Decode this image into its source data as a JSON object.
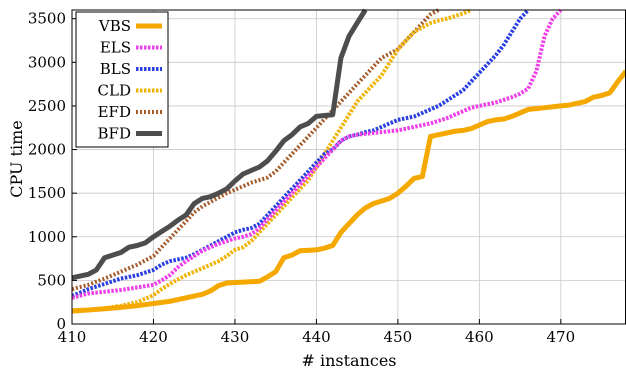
{
  "chart_data": {
    "type": "line",
    "title": "",
    "xlabel": "# instances",
    "ylabel": "CPU time",
    "xlim": [
      410,
      478
    ],
    "ylim": [
      0,
      3600
    ],
    "xticks": [
      410,
      420,
      430,
      440,
      450,
      460,
      470
    ],
    "yticks": [
      0,
      500,
      1000,
      1500,
      2000,
      2500,
      3000,
      3500
    ],
    "grid": true,
    "legend_position": "top-left",
    "series": [
      {
        "name": "VBS",
        "color": "#f5a800",
        "marker": "line",
        "points": [
          [
            410,
            150
          ],
          [
            412,
            160
          ],
          [
            414,
            175
          ],
          [
            416,
            190
          ],
          [
            418,
            210
          ],
          [
            420,
            235
          ],
          [
            422,
            260
          ],
          [
            424,
            300
          ],
          [
            426,
            340
          ],
          [
            427,
            380
          ],
          [
            428,
            440
          ],
          [
            429,
            470
          ],
          [
            431,
            480
          ],
          [
            433,
            490
          ],
          [
            434,
            540
          ],
          [
            435,
            600
          ],
          [
            436,
            760
          ],
          [
            437,
            790
          ],
          [
            438,
            840
          ],
          [
            440,
            850
          ],
          [
            441,
            870
          ],
          [
            442,
            900
          ],
          [
            443,
            1050
          ],
          [
            444,
            1150
          ],
          [
            445,
            1250
          ],
          [
            446,
            1330
          ],
          [
            447,
            1380
          ],
          [
            448,
            1410
          ],
          [
            449,
            1440
          ],
          [
            450,
            1500
          ],
          [
            451,
            1580
          ],
          [
            452,
            1670
          ],
          [
            453,
            1690
          ],
          [
            454,
            2150
          ],
          [
            455,
            2170
          ],
          [
            456,
            2190
          ],
          [
            457,
            2210
          ],
          [
            458,
            2220
          ],
          [
            459,
            2240
          ],
          [
            460,
            2280
          ],
          [
            461,
            2320
          ],
          [
            462,
            2340
          ],
          [
            463,
            2350
          ],
          [
            464,
            2380
          ],
          [
            465,
            2420
          ],
          [
            466,
            2460
          ],
          [
            467,
            2470
          ],
          [
            468,
            2480
          ],
          [
            470,
            2500
          ],
          [
            471,
            2510
          ],
          [
            472,
            2530
          ],
          [
            473,
            2550
          ],
          [
            474,
            2600
          ],
          [
            475,
            2620
          ],
          [
            476,
            2650
          ],
          [
            477,
            2780
          ],
          [
            478,
            2900
          ]
        ]
      },
      {
        "name": "ELS",
        "color": "#ee3ee8",
        "marker": "cross",
        "points": [
          [
            410,
            300
          ],
          [
            412,
            350
          ],
          [
            414,
            370
          ],
          [
            416,
            390
          ],
          [
            418,
            420
          ],
          [
            420,
            450
          ],
          [
            421,
            500
          ],
          [
            422,
            560
          ],
          [
            423,
            650
          ],
          [
            424,
            720
          ],
          [
            425,
            780
          ],
          [
            426,
            840
          ],
          [
            427,
            880
          ],
          [
            428,
            920
          ],
          [
            429,
            950
          ],
          [
            430,
            980
          ],
          [
            431,
            1000
          ],
          [
            432,
            1030
          ],
          [
            433,
            1100
          ],
          [
            434,
            1200
          ],
          [
            435,
            1300
          ],
          [
            436,
            1400
          ],
          [
            437,
            1500
          ],
          [
            438,
            1600
          ],
          [
            439,
            1700
          ],
          [
            440,
            1800
          ],
          [
            441,
            1900
          ],
          [
            442,
            2000
          ],
          [
            443,
            2100
          ],
          [
            444,
            2150
          ],
          [
            445,
            2170
          ],
          [
            446,
            2180
          ],
          [
            447,
            2190
          ],
          [
            448,
            2200
          ],
          [
            449,
            2210
          ],
          [
            450,
            2220
          ],
          [
            451,
            2240
          ],
          [
            452,
            2260
          ],
          [
            453,
            2280
          ],
          [
            454,
            2300
          ],
          [
            455,
            2330
          ],
          [
            456,
            2360
          ],
          [
            457,
            2400
          ],
          [
            458,
            2440
          ],
          [
            459,
            2480
          ],
          [
            460,
            2500
          ],
          [
            461,
            2520
          ],
          [
            462,
            2540
          ],
          [
            463,
            2570
          ],
          [
            464,
            2600
          ],
          [
            465,
            2640
          ],
          [
            466,
            2700
          ],
          [
            467,
            2900
          ],
          [
            468,
            3300
          ],
          [
            469,
            3500
          ],
          [
            470,
            3600
          ]
        ]
      },
      {
        "name": "BLS",
        "color": "#2a3fe0",
        "marker": "cross",
        "points": [
          [
            410,
            320
          ],
          [
            412,
            400
          ],
          [
            414,
            460
          ],
          [
            416,
            520
          ],
          [
            418,
            560
          ],
          [
            420,
            620
          ],
          [
            421,
            680
          ],
          [
            422,
            720
          ],
          [
            424,
            760
          ],
          [
            425,
            800
          ],
          [
            426,
            850
          ],
          [
            427,
            900
          ],
          [
            428,
            950
          ],
          [
            429,
            1000
          ],
          [
            430,
            1050
          ],
          [
            431,
            1080
          ],
          [
            432,
            1100
          ],
          [
            433,
            1150
          ],
          [
            434,
            1250
          ],
          [
            435,
            1350
          ],
          [
            436,
            1450
          ],
          [
            437,
            1550
          ],
          [
            438,
            1650
          ],
          [
            439,
            1750
          ],
          [
            440,
            1850
          ],
          [
            441,
            1950
          ],
          [
            442,
            2000
          ],
          [
            443,
            2100
          ],
          [
            444,
            2150
          ],
          [
            445,
            2170
          ],
          [
            446,
            2200
          ],
          [
            447,
            2220
          ],
          [
            448,
            2260
          ],
          [
            449,
            2300
          ],
          [
            450,
            2340
          ],
          [
            451,
            2360
          ],
          [
            452,
            2380
          ],
          [
            453,
            2420
          ],
          [
            454,
            2460
          ],
          [
            455,
            2500
          ],
          [
            456,
            2560
          ],
          [
            457,
            2620
          ],
          [
            458,
            2680
          ],
          [
            459,
            2780
          ],
          [
            460,
            2880
          ],
          [
            461,
            2980
          ],
          [
            462,
            3080
          ],
          [
            463,
            3200
          ],
          [
            464,
            3350
          ],
          [
            465,
            3500
          ],
          [
            466,
            3600
          ]
        ]
      },
      {
        "name": "CLD",
        "color": "#f0b400",
        "marker": "cross",
        "points": [
          [
            410,
            140
          ],
          [
            412,
            160
          ],
          [
            414,
            180
          ],
          [
            416,
            210
          ],
          [
            418,
            250
          ],
          [
            420,
            330
          ],
          [
            421,
            400
          ],
          [
            422,
            460
          ],
          [
            423,
            510
          ],
          [
            424,
            560
          ],
          [
            425,
            600
          ],
          [
            426,
            640
          ],
          [
            427,
            680
          ],
          [
            428,
            720
          ],
          [
            429,
            780
          ],
          [
            430,
            850
          ],
          [
            431,
            880
          ],
          [
            432,
            950
          ],
          [
            433,
            1050
          ],
          [
            434,
            1150
          ],
          [
            435,
            1250
          ],
          [
            436,
            1350
          ],
          [
            437,
            1450
          ],
          [
            438,
            1550
          ],
          [
            439,
            1650
          ],
          [
            440,
            1800
          ],
          [
            441,
            1950
          ],
          [
            442,
            2100
          ],
          [
            443,
            2250
          ],
          [
            444,
            2400
          ],
          [
            445,
            2550
          ],
          [
            446,
            2650
          ],
          [
            447,
            2750
          ],
          [
            448,
            2850
          ],
          [
            449,
            3000
          ],
          [
            450,
            3150
          ],
          [
            451,
            3250
          ],
          [
            452,
            3350
          ],
          [
            453,
            3400
          ],
          [
            454,
            3450
          ],
          [
            455,
            3480
          ],
          [
            456,
            3500
          ],
          [
            457,
            3530
          ],
          [
            458,
            3560
          ],
          [
            459,
            3600
          ]
        ]
      },
      {
        "name": "EFD",
        "color": "#a65a2a",
        "marker": "asterisk",
        "points": [
          [
            410,
            400
          ],
          [
            412,
            450
          ],
          [
            414,
            520
          ],
          [
            416,
            600
          ],
          [
            418,
            680
          ],
          [
            420,
            780
          ],
          [
            421,
            880
          ],
          [
            422,
            980
          ],
          [
            423,
            1080
          ],
          [
            424,
            1180
          ],
          [
            425,
            1280
          ],
          [
            426,
            1350
          ],
          [
            427,
            1400
          ],
          [
            428,
            1450
          ],
          [
            429,
            1500
          ],
          [
            430,
            1540
          ],
          [
            431,
            1580
          ],
          [
            432,
            1620
          ],
          [
            433,
            1650
          ],
          [
            434,
            1680
          ],
          [
            435,
            1750
          ],
          [
            436,
            1850
          ],
          [
            437,
            1950
          ],
          [
            438,
            2050
          ],
          [
            439,
            2150
          ],
          [
            440,
            2250
          ],
          [
            441,
            2350
          ],
          [
            442,
            2450
          ],
          [
            443,
            2550
          ],
          [
            444,
            2650
          ],
          [
            445,
            2750
          ],
          [
            446,
            2850
          ],
          [
            447,
            2950
          ],
          [
            448,
            3050
          ],
          [
            449,
            3100
          ],
          [
            450,
            3150
          ],
          [
            451,
            3250
          ],
          [
            452,
            3350
          ],
          [
            453,
            3450
          ],
          [
            454,
            3550
          ],
          [
            455,
            3600
          ]
        ]
      },
      {
        "name": "BFD",
        "color": "#4d4d4d",
        "marker": "line",
        "points": [
          [
            410,
            530
          ],
          [
            412,
            570
          ],
          [
            413,
            620
          ],
          [
            414,
            760
          ],
          [
            415,
            790
          ],
          [
            416,
            820
          ],
          [
            417,
            880
          ],
          [
            418,
            900
          ],
          [
            419,
            930
          ],
          [
            420,
            1000
          ],
          [
            421,
            1060
          ],
          [
            422,
            1120
          ],
          [
            423,
            1190
          ],
          [
            424,
            1250
          ],
          [
            425,
            1380
          ],
          [
            426,
            1440
          ],
          [
            427,
            1460
          ],
          [
            428,
            1500
          ],
          [
            429,
            1550
          ],
          [
            430,
            1640
          ],
          [
            431,
            1720
          ],
          [
            432,
            1760
          ],
          [
            433,
            1800
          ],
          [
            434,
            1870
          ],
          [
            435,
            1980
          ],
          [
            436,
            2100
          ],
          [
            437,
            2170
          ],
          [
            438,
            2260
          ],
          [
            439,
            2300
          ],
          [
            440,
            2380
          ],
          [
            441,
            2390
          ],
          [
            442,
            2400
          ],
          [
            443,
            3050
          ],
          [
            444,
            3300
          ],
          [
            445,
            3450
          ],
          [
            446,
            3600
          ]
        ]
      }
    ]
  }
}
